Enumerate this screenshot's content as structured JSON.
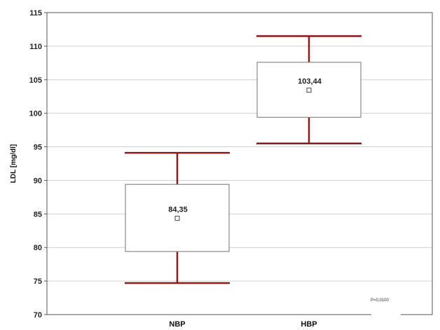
{
  "chart_data": {
    "type": "boxplot",
    "ylabel": "LDL [mg/dl]",
    "ylim": [
      70,
      115
    ],
    "yticks": [
      70,
      75,
      80,
      85,
      90,
      95,
      100,
      105,
      110,
      115
    ],
    "grid": true,
    "categories": [
      "NBP",
      "HBP"
    ],
    "boxes": [
      {
        "category": "NBP",
        "whisker_low": 74.7,
        "q1": 79.4,
        "mean": 84.35,
        "q3": 89.4,
        "whisker_high": 94.1,
        "mean_label": "84,35"
      },
      {
        "category": "HBP",
        "whisker_low": 95.5,
        "q1": 99.4,
        "mean": 103.44,
        "q3": 107.6,
        "whisker_high": 111.5,
        "mean_label": "103,44"
      }
    ],
    "annotation": "P=0,0100",
    "colors": {
      "whisker": "#8b1a1a",
      "box_border": "#888888",
      "grid": "#d0d0d0"
    }
  }
}
